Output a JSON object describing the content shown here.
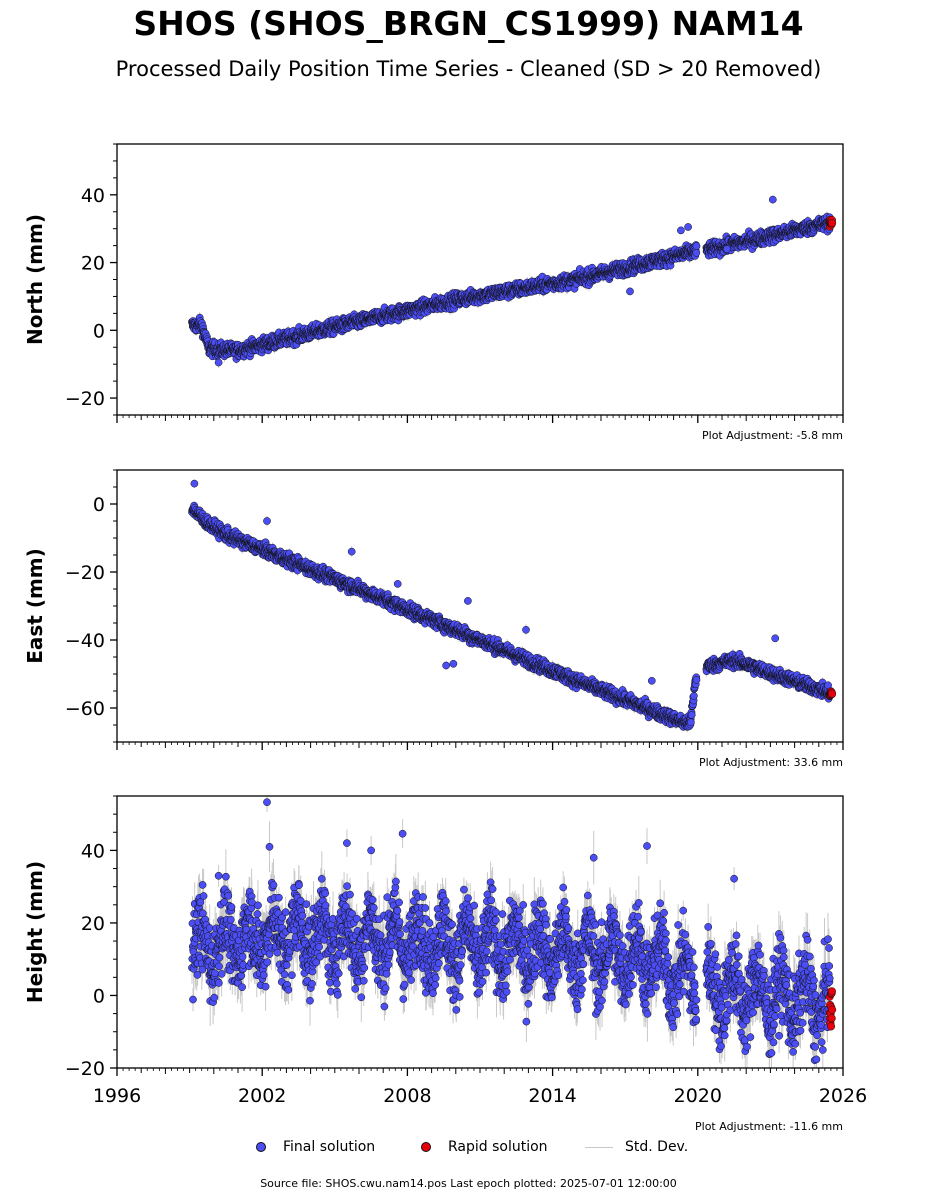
{
  "chart_data": {
    "type": "scatter",
    "title": "SHOS (SHOS_BRGN_CS1999) NAM14",
    "subtitle": "Processed Daily Position Time Series - Cleaned (SD > 20 Removed)",
    "x_ticks": [
      "1996",
      "2002",
      "2008",
      "2014",
      "2020",
      "2026"
    ],
    "xlim": [
      1996,
      2026
    ],
    "panels": [
      {
        "name": "north",
        "ylabel": "North (mm)",
        "ylim": [
          -25,
          55
        ],
        "y_ticks": [
          "40",
          "20",
          "0",
          "−20"
        ],
        "y_tick_values": [
          40,
          20,
          0,
          -20
        ],
        "adjustment": "Plot Adjustment: -5.8 mm",
        "trend": [
          [
            1999.1,
            1.5
          ],
          [
            1999.5,
            1.5
          ],
          [
            1999.8,
            -5.5
          ],
          [
            2001,
            -6
          ],
          [
            2005,
            1
          ],
          [
            2010,
            9
          ],
          [
            2015,
            15
          ],
          [
            2019.7,
            23
          ],
          [
            2020.6,
            24
          ],
          [
            2025.6,
            32
          ]
        ],
        "noise": 1.4,
        "sd": 1.0,
        "outliers": [
          [
            2023.1,
            38.6
          ],
          [
            2019.3,
            29.5
          ],
          [
            2019.6,
            30.5
          ],
          [
            2017.2,
            11.5
          ],
          [
            2021.2,
            24
          ],
          [
            2000.2,
            -9.5
          ]
        ]
      },
      {
        "name": "east",
        "ylabel": "East (mm)",
        "ylim": [
          -70,
          10
        ],
        "y_ticks": [
          "0",
          "−20",
          "−40",
          "−60"
        ],
        "y_tick_values": [
          0,
          -20,
          -40,
          -60
        ],
        "adjustment": "Plot Adjustment: 33.6 mm",
        "trend": [
          [
            1999.1,
            -1
          ],
          [
            1999.6,
            -5
          ],
          [
            2000.5,
            -9
          ],
          [
            2005,
            -22
          ],
          [
            2010,
            -37
          ],
          [
            2015,
            -52
          ],
          [
            2019.3,
            -64
          ],
          [
            2019.7,
            -64.5
          ],
          [
            2019.9,
            -52
          ],
          [
            2020.2,
            -48
          ],
          [
            2021.5,
            -46
          ],
          [
            2025.6,
            -56
          ]
        ],
        "noise": 1.3,
        "sd": 1.0,
        "outliers": [
          [
            1999.2,
            6
          ],
          [
            2002.2,
            -5
          ],
          [
            2005.7,
            -14
          ],
          [
            2010.5,
            -28.5
          ],
          [
            2009.9,
            -47
          ],
          [
            2009.6,
            -47.5
          ],
          [
            2012.9,
            -37
          ],
          [
            2018.1,
            -52
          ],
          [
            2023.2,
            -39.5
          ],
          [
            2007.6,
            -23.5
          ]
        ]
      },
      {
        "name": "height",
        "ylabel": "Height (mm)",
        "ylim": [
          -20,
          55
        ],
        "y_ticks": [
          "40",
          "20",
          "0",
          "−20"
        ],
        "y_tick_values": [
          40,
          20,
          0,
          -20
        ],
        "adjustment": "Plot Adjustment: -11.6 mm",
        "trend": [
          [
            1999.1,
            13
          ],
          [
            2003,
            17
          ],
          [
            2008,
            15
          ],
          [
            2013,
            13
          ],
          [
            2018,
            10
          ],
          [
            2019.8,
            4
          ],
          [
            2020.5,
            2
          ],
          [
            2025.6,
            -2
          ]
        ],
        "noise": 7.5,
        "sd": 4.5,
        "seasonal": 6,
        "outliers": [
          [
            2002.2,
            53.3
          ],
          [
            2002.3,
            41
          ],
          [
            2007.8,
            44.6
          ],
          [
            2017.9,
            41.2
          ],
          [
            2021.5,
            32.2
          ],
          [
            2005.5,
            42
          ],
          [
            2006.5,
            40
          ],
          [
            2015.7,
            38
          ],
          [
            2000.2,
            33
          ]
        ]
      }
    ],
    "final_range": [
      1999.1,
      2025.45
    ],
    "rapid_range": [
      2025.45,
      2025.55
    ],
    "legend": [
      "Final solution",
      "Rapid solution",
      "Std. Dev."
    ],
    "colors": {
      "final": "#4b4df5",
      "rapid": "#e8000b",
      "sd": "#bbbbbb",
      "edge": "#111111"
    }
  },
  "footer": "Source file: SHOS.cwu.nam14.pos  Last epoch plotted: 2025-07-01 12:00:00"
}
